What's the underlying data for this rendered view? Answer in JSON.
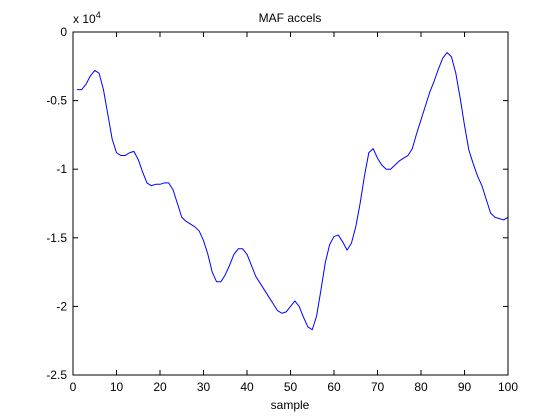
{
  "chart_data": {
    "type": "line",
    "title": "MAF accels",
    "xlabel": "sample",
    "ylabel": "",
    "scale_label": "x 10",
    "scale_exponent": "4",
    "xlim": [
      0,
      100
    ],
    "ylim": [
      -2.5,
      0
    ],
    "x_ticks": [
      0,
      10,
      20,
      30,
      40,
      50,
      60,
      70,
      80,
      90,
      100
    ],
    "x_tick_labels": [
      "0",
      "10",
      "20",
      "30",
      "40",
      "50",
      "60",
      "70",
      "80",
      "90",
      "100"
    ],
    "y_ticks": [
      0,
      -0.5,
      -1,
      -1.5,
      -2,
      -2.5
    ],
    "y_tick_labels": [
      "0",
      "-0.5",
      "-1",
      "-1.5",
      "-2",
      "-2.5"
    ],
    "grid": false,
    "series": [
      {
        "color": "#0000ff",
        "points": [
          [
            1,
            -0.42
          ],
          [
            2,
            -0.42
          ],
          [
            3,
            -0.38
          ],
          [
            4,
            -0.32
          ],
          [
            5,
            -0.28
          ],
          [
            6,
            -0.3
          ],
          [
            7,
            -0.42
          ],
          [
            8,
            -0.6
          ],
          [
            9,
            -0.78
          ],
          [
            10,
            -0.88
          ],
          [
            11,
            -0.9
          ],
          [
            12,
            -0.9
          ],
          [
            13,
            -0.88
          ],
          [
            14,
            -0.87
          ],
          [
            15,
            -0.93
          ],
          [
            16,
            -1.02
          ],
          [
            17,
            -1.1
          ],
          [
            18,
            -1.12
          ],
          [
            19,
            -1.11
          ],
          [
            20,
            -1.11
          ],
          [
            21,
            -1.1
          ],
          [
            22,
            -1.1
          ],
          [
            23,
            -1.15
          ],
          [
            24,
            -1.25
          ],
          [
            25,
            -1.35
          ],
          [
            26,
            -1.38
          ],
          [
            27,
            -1.4
          ],
          [
            28,
            -1.42
          ],
          [
            29,
            -1.45
          ],
          [
            30,
            -1.52
          ],
          [
            31,
            -1.62
          ],
          [
            32,
            -1.75
          ],
          [
            33,
            -1.82
          ],
          [
            34,
            -1.82
          ],
          [
            35,
            -1.77
          ],
          [
            36,
            -1.7
          ],
          [
            37,
            -1.62
          ],
          [
            38,
            -1.58
          ],
          [
            39,
            -1.58
          ],
          [
            40,
            -1.62
          ],
          [
            41,
            -1.7
          ],
          [
            42,
            -1.78
          ],
          [
            43,
            -1.83
          ],
          [
            44,
            -1.88
          ],
          [
            45,
            -1.93
          ],
          [
            46,
            -1.98
          ],
          [
            47,
            -2.03
          ],
          [
            48,
            -2.05
          ],
          [
            49,
            -2.04
          ],
          [
            50,
            -2.0
          ],
          [
            51,
            -1.96
          ],
          [
            52,
            -2.0
          ],
          [
            53,
            -2.08
          ],
          [
            54,
            -2.15
          ],
          [
            55,
            -2.17
          ],
          [
            56,
            -2.07
          ],
          [
            57,
            -1.88
          ],
          [
            58,
            -1.68
          ],
          [
            59,
            -1.55
          ],
          [
            60,
            -1.49
          ],
          [
            61,
            -1.48
          ],
          [
            62,
            -1.53
          ],
          [
            63,
            -1.59
          ],
          [
            64,
            -1.54
          ],
          [
            65,
            -1.42
          ],
          [
            66,
            -1.25
          ],
          [
            67,
            -1.05
          ],
          [
            68,
            -0.88
          ],
          [
            69,
            -0.85
          ],
          [
            70,
            -0.92
          ],
          [
            71,
            -0.97
          ],
          [
            72,
            -1.0
          ],
          [
            73,
            -1.0
          ],
          [
            74,
            -0.97
          ],
          [
            75,
            -0.94
          ],
          [
            76,
            -0.92
          ],
          [
            77,
            -0.9
          ],
          [
            78,
            -0.85
          ],
          [
            79,
            -0.74
          ],
          [
            80,
            -0.64
          ],
          [
            81,
            -0.54
          ],
          [
            82,
            -0.44
          ],
          [
            83,
            -0.36
          ],
          [
            84,
            -0.27
          ],
          [
            85,
            -0.19
          ],
          [
            86,
            -0.15
          ],
          [
            87,
            -0.18
          ],
          [
            88,
            -0.3
          ],
          [
            89,
            -0.48
          ],
          [
            90,
            -0.68
          ],
          [
            91,
            -0.86
          ],
          [
            92,
            -0.96
          ],
          [
            93,
            -1.05
          ],
          [
            94,
            -1.12
          ],
          [
            95,
            -1.22
          ],
          [
            96,
            -1.32
          ],
          [
            97,
            -1.35
          ],
          [
            98,
            -1.36
          ],
          [
            99,
            -1.37
          ],
          [
            100,
            -1.35
          ]
        ]
      }
    ]
  }
}
